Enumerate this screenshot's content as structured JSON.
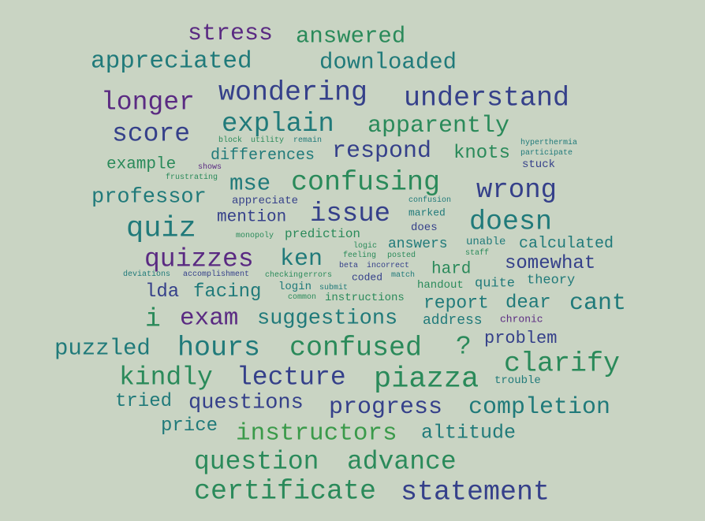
{
  "background": "#c9d4c3",
  "palette": {
    "purple": "#5a2a82",
    "indigo": "#35408a",
    "blue": "#2f5f8a",
    "teal": "#207a7a",
    "green": "#2a8a5a",
    "lightgreen": "#3a9a4a"
  },
  "words": [
    {
      "text": "stress",
      "color": "purple",
      "weight": 30
    },
    {
      "text": "answered",
      "color": "green",
      "weight": 29
    },
    {
      "text": "appreciated",
      "color": "teal",
      "weight": 31
    },
    {
      "text": "downloaded",
      "color": "teal",
      "weight": 29
    },
    {
      "text": "longer",
      "color": "purple",
      "weight": 33
    },
    {
      "text": "wondering",
      "color": "indigo",
      "weight": 35
    },
    {
      "text": "understand",
      "color": "indigo",
      "weight": 35
    },
    {
      "text": "score",
      "color": "indigo",
      "weight": 33
    },
    {
      "text": "explain",
      "color": "teal",
      "weight": 34
    },
    {
      "text": "apparently",
      "color": "green",
      "weight": 30
    },
    {
      "text": "block",
      "color": "green",
      "weight": 10
    },
    {
      "text": "utility",
      "color": "green",
      "weight": 10
    },
    {
      "text": "remain",
      "color": "teal",
      "weight": 10
    },
    {
      "text": "hyperthermia",
      "color": "teal",
      "weight": 10
    },
    {
      "text": "differences",
      "color": "teal",
      "weight": 20
    },
    {
      "text": "respond",
      "color": "indigo",
      "weight": 30
    },
    {
      "text": "knots",
      "color": "green",
      "weight": 24
    },
    {
      "text": "participate",
      "color": "teal",
      "weight": 10
    },
    {
      "text": "example",
      "color": "green",
      "weight": 21
    },
    {
      "text": "shows",
      "color": "purple",
      "weight": 10
    },
    {
      "text": "stuck",
      "color": "indigo",
      "weight": 14
    },
    {
      "text": "frustrating",
      "color": "green",
      "weight": 10
    },
    {
      "text": "mse",
      "color": "teal",
      "weight": 29
    },
    {
      "text": "confusing",
      "color": "green",
      "weight": 35
    },
    {
      "text": "wrong",
      "color": "indigo",
      "weight": 34
    },
    {
      "text": "professor",
      "color": "teal",
      "weight": 27
    },
    {
      "text": "appreciate",
      "color": "indigo",
      "weight": 14
    },
    {
      "text": "confusion",
      "color": "teal",
      "weight": 10
    },
    {
      "text": "issue",
      "color": "indigo",
      "weight": 34
    },
    {
      "text": "mention",
      "color": "indigo",
      "weight": 21
    },
    {
      "text": "marked",
      "color": "teal",
      "weight": 13
    },
    {
      "text": "doesn",
      "color": "teal",
      "weight": 35
    },
    {
      "text": "quiz",
      "color": "teal",
      "weight": 37
    },
    {
      "text": "does",
      "color": "indigo",
      "weight": 14
    },
    {
      "text": "monopoly",
      "color": "green",
      "weight": 10
    },
    {
      "text": "prediction",
      "color": "green",
      "weight": 16
    },
    {
      "text": "answers",
      "color": "teal",
      "weight": 18
    },
    {
      "text": "unable",
      "color": "teal",
      "weight": 14
    },
    {
      "text": "calculated",
      "color": "teal",
      "weight": 20
    },
    {
      "text": "logic",
      "color": "green",
      "weight": 10
    },
    {
      "text": "quizzes",
      "color": "purple",
      "weight": 33
    },
    {
      "text": "ken",
      "color": "teal",
      "weight": 30
    },
    {
      "text": "feeling",
      "color": "green",
      "weight": 10
    },
    {
      "text": "posted",
      "color": "green",
      "weight": 10
    },
    {
      "text": "staff",
      "color": "green",
      "weight": 10
    },
    {
      "text": "somewhat",
      "color": "indigo",
      "weight": 24
    },
    {
      "text": "beta",
      "color": "indigo",
      "weight": 10
    },
    {
      "text": "incorrect",
      "color": "indigo",
      "weight": 10
    },
    {
      "text": "hard",
      "color": "green",
      "weight": 21
    },
    {
      "text": "deviations",
      "color": "teal",
      "weight": 10
    },
    {
      "text": "accomplishment",
      "color": "indigo",
      "weight": 10
    },
    {
      "text": "checking",
      "color": "green",
      "weight": 10
    },
    {
      "text": "errors",
      "color": "green",
      "weight": 10
    },
    {
      "text": "coded",
      "color": "indigo",
      "weight": 13
    },
    {
      "text": "match",
      "color": "teal",
      "weight": 10
    },
    {
      "text": "theory",
      "color": "teal",
      "weight": 17
    },
    {
      "text": "handout",
      "color": "green",
      "weight": 14
    },
    {
      "text": "quite",
      "color": "teal",
      "weight": 17
    },
    {
      "text": "lda",
      "color": "indigo",
      "weight": 24
    },
    {
      "text": "facing",
      "color": "teal",
      "weight": 24
    },
    {
      "text": "login",
      "color": "teal",
      "weight": 14
    },
    {
      "text": "submit",
      "color": "teal",
      "weight": 10
    },
    {
      "text": "common",
      "color": "green",
      "weight": 10
    },
    {
      "text": "instructions",
      "color": "green",
      "weight": 14
    },
    {
      "text": "report",
      "color": "teal",
      "weight": 23
    },
    {
      "text": "dear",
      "color": "teal",
      "weight": 24
    },
    {
      "text": "cant",
      "color": "teal",
      "weight": 30
    },
    {
      "text": "i",
      "color": "green",
      "weight": 33
    },
    {
      "text": "exam",
      "color": "purple",
      "weight": 31
    },
    {
      "text": "suggestions",
      "color": "teal",
      "weight": 27
    },
    {
      "text": "address",
      "color": "teal",
      "weight": 18
    },
    {
      "text": "chronic",
      "color": "purple",
      "weight": 13
    },
    {
      "text": "problem",
      "color": "indigo",
      "weight": 22
    },
    {
      "text": "puzzled",
      "color": "teal",
      "weight": 29
    },
    {
      "text": "hours",
      "color": "teal",
      "weight": 35
    },
    {
      "text": "confused",
      "color": "green",
      "weight": 35
    },
    {
      "text": "?",
      "color": "green",
      "weight": 33
    },
    {
      "text": "clarify",
      "color": "green",
      "weight": 35
    },
    {
      "text": "kindly",
      "color": "green",
      "weight": 33
    },
    {
      "text": "lecture",
      "color": "indigo",
      "weight": 33
    },
    {
      "text": "piazza",
      "color": "green",
      "weight": 37
    },
    {
      "text": "trouble",
      "color": "teal",
      "weight": 14
    },
    {
      "text": "tried",
      "color": "teal",
      "weight": 24
    },
    {
      "text": "questions",
      "color": "indigo",
      "weight": 27
    },
    {
      "text": "progress",
      "color": "indigo",
      "weight": 30
    },
    {
      "text": "completion",
      "color": "teal",
      "weight": 30
    },
    {
      "text": "price",
      "color": "teal",
      "weight": 24
    },
    {
      "text": "instructors",
      "color": "lightgreen",
      "weight": 31
    },
    {
      "text": "altitude",
      "color": "teal",
      "weight": 25
    },
    {
      "text": "question",
      "color": "green",
      "weight": 33
    },
    {
      "text": "advance",
      "color": "green",
      "weight": 33
    },
    {
      "text": "certificate",
      "color": "green",
      "weight": 35
    },
    {
      "text": "statement",
      "color": "indigo",
      "weight": 35
    }
  ]
}
